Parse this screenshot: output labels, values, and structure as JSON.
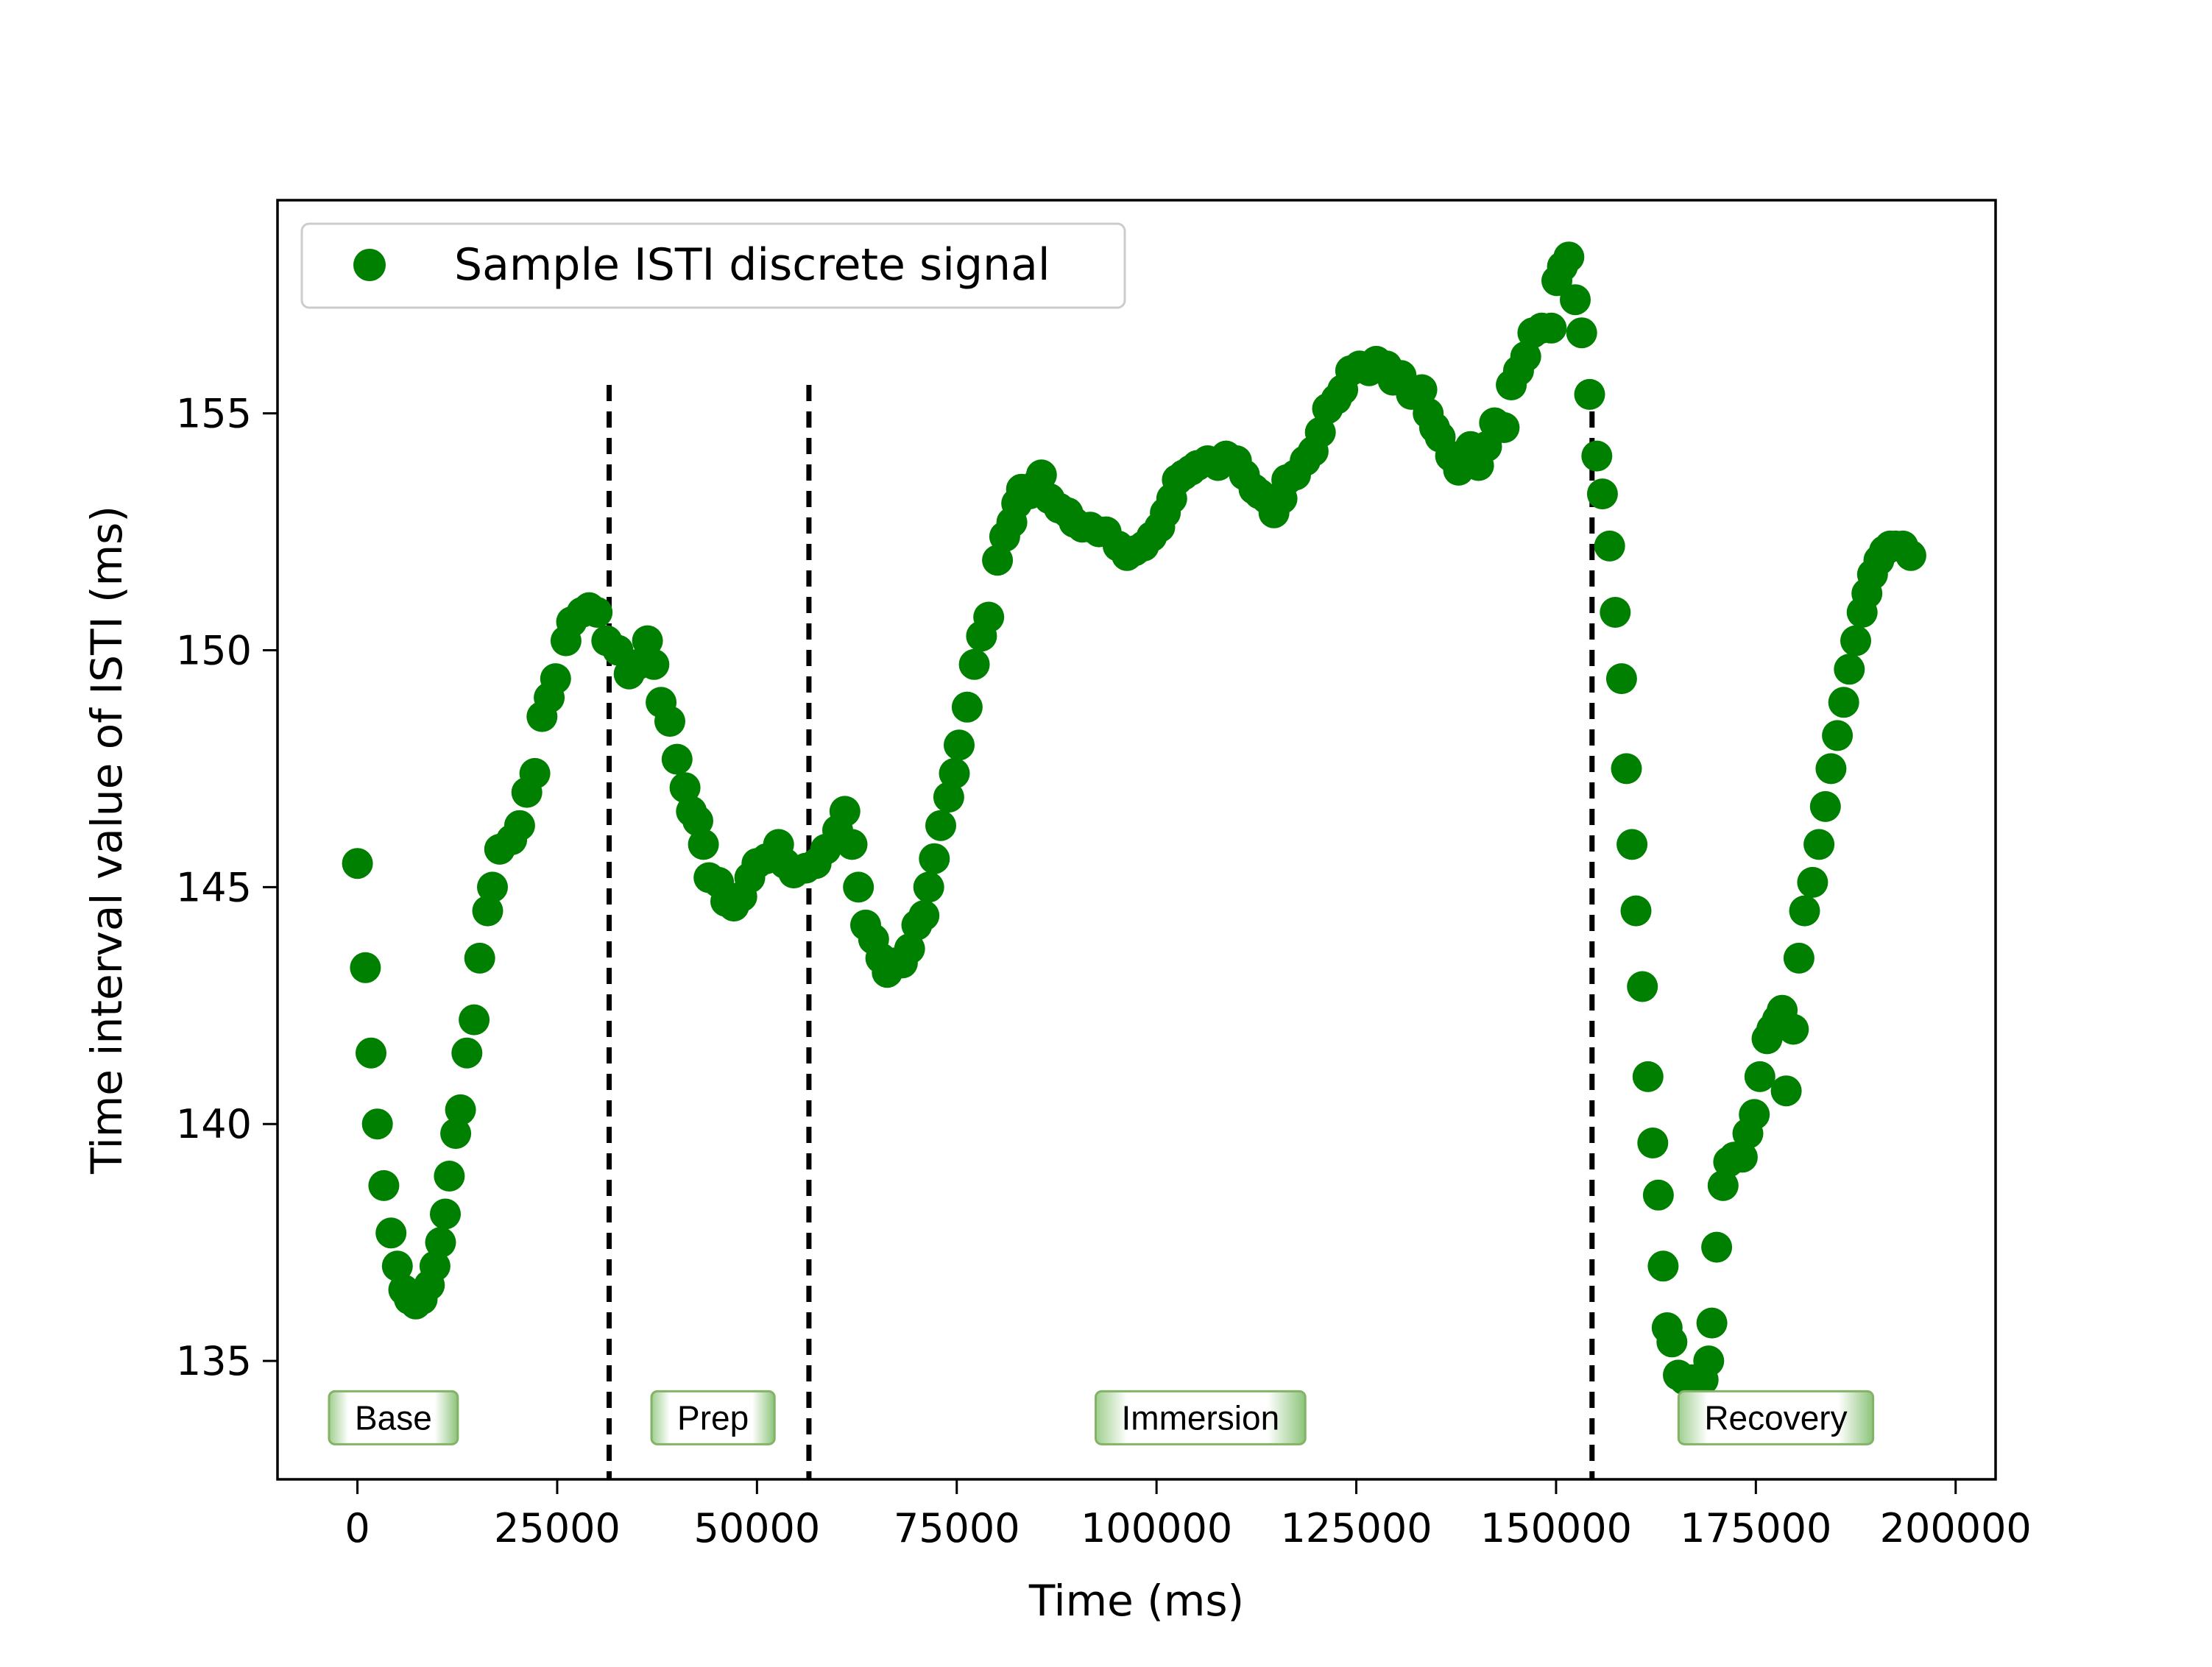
{
  "chart_data": {
    "type": "scatter",
    "title": "",
    "xlabel": "Time (ms)",
    "ylabel": "Time interval value of ISTI (ms)",
    "xlim": [
      -10000,
      205000
    ],
    "ylim": [
      132.5,
      159.5
    ],
    "xticks": [
      0,
      25000,
      50000,
      75000,
      100000,
      125000,
      150000,
      175000,
      200000
    ],
    "xtick_labels": [
      "0",
      "25000",
      "50000",
      "75000",
      "100000",
      "125000",
      "150000",
      "175000",
      "200000"
    ],
    "yticks": [
      135,
      140,
      145,
      150,
      155
    ],
    "ytick_labels": [
      "135",
      "140",
      "145",
      "150",
      "155"
    ],
    "grid": false,
    "legend": {
      "placement": "upper-left",
      "entries": [
        "Sample ISTI discrete signal"
      ]
    },
    "marker_color": "#008000",
    "phase_boundaries": [
      31500,
      56500,
      154500
    ],
    "phase_boundary_ymax": 155.6,
    "phases": [
      {
        "label": "Base",
        "x": 4500
      },
      {
        "label": "Prep",
        "x": 44500
      },
      {
        "label": "Immersion",
        "x": 105500
      },
      {
        "label": "Recovery",
        "x": 177500
      }
    ],
    "phase_label_y": 133.8,
    "series": [
      {
        "name": "Sample ISTI discrete signal",
        "points": [
          [
            0,
            145.5
          ],
          [
            1000,
            143.3
          ],
          [
            1700,
            141.5
          ],
          [
            2500,
            140.0
          ],
          [
            3300,
            138.7
          ],
          [
            4200,
            137.7
          ],
          [
            5000,
            137.0
          ],
          [
            5800,
            136.5
          ],
          [
            6500,
            136.3
          ],
          [
            7300,
            136.2
          ],
          [
            8100,
            136.3
          ],
          [
            9000,
            136.6
          ],
          [
            9700,
            137.0
          ],
          [
            10400,
            137.5
          ],
          [
            11000,
            138.1
          ],
          [
            11500,
            138.9
          ],
          [
            12300,
            139.8
          ],
          [
            12900,
            140.3
          ],
          [
            13700,
            141.5
          ],
          [
            14600,
            142.2
          ],
          [
            15300,
            143.5
          ],
          [
            16300,
            144.5
          ],
          [
            16900,
            145.0
          ],
          [
            17800,
            145.8
          ],
          [
            19300,
            146.0
          ],
          [
            20300,
            146.3
          ],
          [
            21200,
            147.0
          ],
          [
            22200,
            147.4
          ],
          [
            23100,
            148.6
          ],
          [
            24000,
            149.0
          ],
          [
            24800,
            149.4
          ],
          [
            26100,
            150.2
          ],
          [
            26800,
            150.6
          ],
          [
            28100,
            150.8
          ],
          [
            29000,
            150.9
          ],
          [
            30000,
            150.8
          ],
          [
            31200,
            150.2
          ],
          [
            32600,
            150.0
          ],
          [
            34000,
            149.5
          ],
          [
            35100,
            149.7
          ],
          [
            36300,
            150.2
          ],
          [
            37100,
            149.7
          ],
          [
            38000,
            148.9
          ],
          [
            39100,
            148.5
          ],
          [
            40000,
            147.7
          ],
          [
            41000,
            147.1
          ],
          [
            41800,
            146.6
          ],
          [
            42600,
            146.4
          ],
          [
            43300,
            145.9
          ],
          [
            44000,
            145.2
          ],
          [
            45200,
            145.1
          ],
          [
            46100,
            144.7
          ],
          [
            47100,
            144.6
          ],
          [
            48100,
            144.8
          ],
          [
            49100,
            145.2
          ],
          [
            50000,
            145.5
          ],
          [
            51200,
            145.6
          ],
          [
            52700,
            145.9
          ],
          [
            53500,
            145.5
          ],
          [
            54600,
            145.3
          ],
          [
            56100,
            145.4
          ],
          [
            57400,
            145.5
          ],
          [
            58600,
            145.8
          ],
          [
            60100,
            146.2
          ],
          [
            61000,
            146.6
          ],
          [
            61900,
            145.9
          ],
          [
            62700,
            145.0
          ],
          [
            63600,
            144.2
          ],
          [
            64600,
            143.9
          ],
          [
            65500,
            143.5
          ],
          [
            66300,
            143.2
          ],
          [
            67200,
            143.4
          ],
          [
            68200,
            143.4
          ],
          [
            69100,
            143.7
          ],
          [
            70000,
            144.2
          ],
          [
            70900,
            144.4
          ],
          [
            71500,
            145.0
          ],
          [
            72200,
            145.6
          ],
          [
            73000,
            146.3
          ],
          [
            74000,
            146.9
          ],
          [
            74700,
            147.4
          ],
          [
            75300,
            148.0
          ],
          [
            76300,
            148.8
          ],
          [
            77200,
            149.7
          ],
          [
            78100,
            150.3
          ],
          [
            79000,
            150.7
          ],
          [
            80100,
            151.9
          ],
          [
            81000,
            152.4
          ],
          [
            81900,
            152.7
          ],
          [
            82500,
            153.1
          ],
          [
            83100,
            153.4
          ],
          [
            84100,
            153.3
          ],
          [
            85000,
            153.5
          ],
          [
            85600,
            153.7
          ],
          [
            86600,
            153.2
          ],
          [
            87800,
            153.0
          ],
          [
            88900,
            152.9
          ],
          [
            89700,
            152.7
          ],
          [
            90700,
            152.6
          ],
          [
            91700,
            152.6
          ],
          [
            92800,
            152.5
          ],
          [
            93700,
            152.5
          ],
          [
            95200,
            152.2
          ],
          [
            96300,
            152.0
          ],
          [
            97300,
            152.1
          ],
          [
            98400,
            152.2
          ],
          [
            99400,
            152.4
          ],
          [
            100400,
            152.6
          ],
          [
            101100,
            152.9
          ],
          [
            101900,
            153.2
          ],
          [
            102600,
            153.6
          ],
          [
            103400,
            153.7
          ],
          [
            104300,
            153.8
          ],
          [
            105100,
            153.9
          ],
          [
            106400,
            154.0
          ],
          [
            107700,
            153.9
          ],
          [
            108700,
            154.1
          ],
          [
            110000,
            154.0
          ],
          [
            111000,
            153.7
          ],
          [
            112200,
            153.4
          ],
          [
            112900,
            153.3
          ],
          [
            113800,
            153.2
          ],
          [
            114700,
            152.9
          ],
          [
            115700,
            153.2
          ],
          [
            116300,
            153.6
          ],
          [
            117400,
            153.7
          ],
          [
            118600,
            154.0
          ],
          [
            119600,
            154.2
          ],
          [
            120500,
            154.6
          ],
          [
            121400,
            155.1
          ],
          [
            122500,
            155.3
          ],
          [
            123300,
            155.5
          ],
          [
            124300,
            155.9
          ],
          [
            125400,
            156.0
          ],
          [
            126600,
            155.9
          ],
          [
            127500,
            156.1
          ],
          [
            128800,
            156.0
          ],
          [
            129600,
            155.7
          ],
          [
            130600,
            155.8
          ],
          [
            131900,
            155.4
          ],
          [
            133200,
            155.5
          ],
          [
            134000,
            155.0
          ],
          [
            134800,
            154.7
          ],
          [
            135500,
            154.5
          ],
          [
            136800,
            154.1
          ],
          [
            137800,
            153.8
          ],
          [
            139300,
            154.3
          ],
          [
            140300,
            153.9
          ],
          [
            141300,
            154.3
          ],
          [
            142300,
            154.8
          ],
          [
            143500,
            154.7
          ],
          [
            144400,
            155.6
          ],
          [
            145300,
            155.9
          ],
          [
            146200,
            156.2
          ],
          [
            147100,
            156.7
          ],
          [
            148200,
            156.8
          ],
          [
            149400,
            156.8
          ],
          [
            150100,
            157.8
          ],
          [
            150800,
            158.1
          ],
          [
            151600,
            158.3
          ],
          [
            152400,
            157.4
          ],
          [
            153200,
            156.7
          ],
          [
            154200,
            155.4
          ],
          [
            155100,
            154.1
          ],
          [
            155800,
            153.3
          ],
          [
            156700,
            152.2
          ],
          [
            157400,
            150.8
          ],
          [
            158200,
            149.4
          ],
          [
            158800,
            147.5
          ],
          [
            159500,
            145.9
          ],
          [
            160000,
            144.5
          ],
          [
            160800,
            142.9
          ],
          [
            161500,
            141.0
          ],
          [
            162100,
            139.6
          ],
          [
            162800,
            138.5
          ],
          [
            163400,
            137.0
          ],
          [
            163900,
            135.7
          ],
          [
            164500,
            135.4
          ],
          [
            165300,
            134.7
          ],
          [
            166100,
            134.6
          ],
          [
            167000,
            134.6
          ],
          [
            167800,
            134.5
          ],
          [
            168400,
            134.6
          ],
          [
            169100,
            135.0
          ],
          [
            169500,
            135.8
          ],
          [
            170100,
            137.4
          ],
          [
            170900,
            138.7
          ],
          [
            171600,
            139.2
          ],
          [
            172300,
            139.3
          ],
          [
            173300,
            139.3
          ],
          [
            174000,
            139.8
          ],
          [
            174800,
            140.2
          ],
          [
            175500,
            141.0
          ],
          [
            176400,
            141.8
          ],
          [
            177000,
            142.0
          ],
          [
            177700,
            142.2
          ],
          [
            178300,
            142.4
          ],
          [
            178800,
            140.7
          ],
          [
            179700,
            142.0
          ],
          [
            180400,
            143.5
          ],
          [
            181100,
            144.5
          ],
          [
            182100,
            145.1
          ],
          [
            182900,
            145.9
          ],
          [
            183700,
            146.7
          ],
          [
            184400,
            147.5
          ],
          [
            185200,
            148.2
          ],
          [
            186000,
            148.9
          ],
          [
            186700,
            149.6
          ],
          [
            187500,
            150.2
          ],
          [
            188300,
            150.8
          ],
          [
            188900,
            151.2
          ],
          [
            189600,
            151.6
          ],
          [
            190400,
            151.9
          ],
          [
            191100,
            152.1
          ],
          [
            191800,
            152.2
          ],
          [
            192500,
            152.2
          ],
          [
            193400,
            152.2
          ],
          [
            194400,
            152.0
          ]
        ]
      }
    ]
  }
}
